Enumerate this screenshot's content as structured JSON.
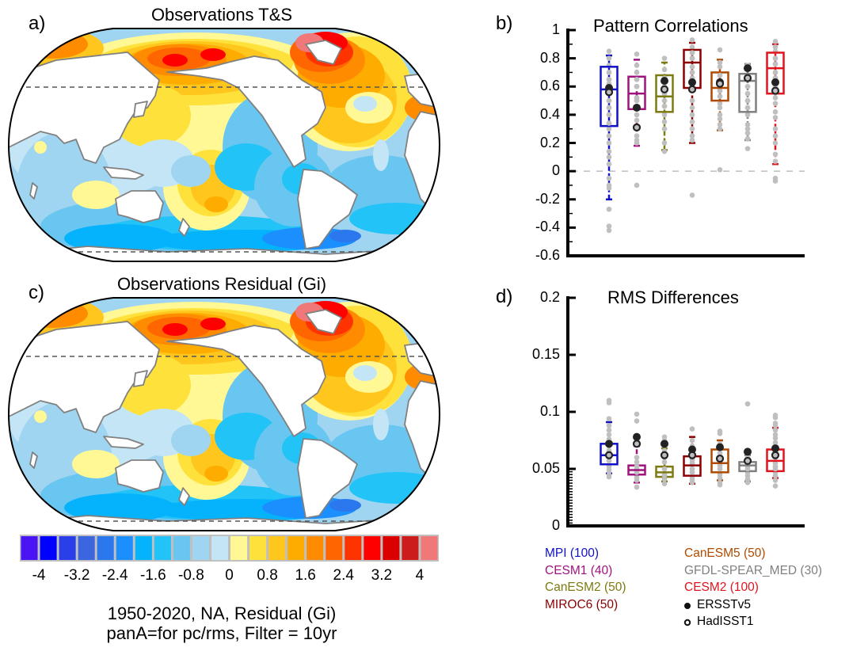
{
  "panels": {
    "a": {
      "label": "a)",
      "title": "Observations T&S"
    },
    "b": {
      "label": "b)",
      "title": "Pattern Correlations"
    },
    "c": {
      "label": "c)",
      "title": "Observations Residual (Gi)"
    },
    "d": {
      "label": "d)",
      "title": "RMS Differences"
    }
  },
  "colorbar": {
    "colors": [
      "#4b14f5",
      "#0000ff",
      "#2a3fea",
      "#3c66df",
      "#2b77ee",
      "#1b8ffd",
      "#05b2fc",
      "#22c3f7",
      "#68c6f1",
      "#9fd5f1",
      "#c4e5f6",
      "#fff894",
      "#ffe13c",
      "#ffc71d",
      "#ffac00",
      "#ff8c00",
      "#ff6600",
      "#ff3300",
      "#ff0000",
      "#db0000",
      "#cc1c1c",
      "#f07878"
    ],
    "labels": [
      "-4",
      "-3.2",
      "-2.4",
      "-1.6",
      "-0.8",
      "0",
      "0.8",
      "1.6",
      "2.4",
      "3.2",
      "4"
    ]
  },
  "caption": {
    "line1": "1950-2020, NA, Residual (Gi)",
    "line2": "panA=for pc/rms, Filter = 10yr"
  },
  "legend": {
    "col1": [
      {
        "text": "MPI (100)",
        "color": "#1010c8"
      },
      {
        "text": "CESM1 (40)",
        "color": "#a0137e"
      },
      {
        "text": "CanESM2 (50)",
        "color": "#7d7a10"
      },
      {
        "text": "MIROC6 (50)",
        "color": "#8b0000"
      }
    ],
    "col2": [
      {
        "text": "CanESM5 (50)",
        "color": "#b04a00"
      },
      {
        "text": "GFDL-SPEAR_MED (30)",
        "color": "#808080"
      },
      {
        "text": "CESM2 (100)",
        "color": "#e0141e"
      },
      {
        "text": "ERSSTv5",
        "color": "#000000",
        "marker": "filled-circle"
      },
      {
        "text": "HadISST1",
        "color": "#000000",
        "marker": "open-circle"
      }
    ]
  },
  "chart_data": [
    {
      "type": "heatmap",
      "title": "Observations T&S",
      "panel": "a",
      "projection": "Robinson (Pacific-centered)",
      "colorbar_range": [
        -4.4,
        4.4
      ],
      "colorbar_step": 0.4,
      "dashed_latitude_lines": [
        "~60N",
        "~45S"
      ],
      "features": [
        {
          "region": "North Pacific (Kuroshio extension)",
          "approx_value": 2.4
        },
        {
          "region": "Subpolar North Atlantic / Labrador Sea",
          "approx_value": 3.4
        },
        {
          "region": "Subtropical North Atlantic",
          "approx_value": 1.2
        },
        {
          "region": "South Pacific (subtropical)",
          "approx_value": 1.2
        },
        {
          "region": "Eastern tropical Pacific",
          "approx_value": -1.2
        },
        {
          "region": "Southern Ocean",
          "approx_value": -1.8
        },
        {
          "region": "Indian Ocean",
          "approx_value": -0.6
        }
      ]
    },
    {
      "type": "box",
      "title": "Pattern Correlations",
      "panel": "b",
      "ylim": [
        -0.6,
        1.0
      ],
      "yticks": [
        -0.6,
        -0.4,
        -0.2,
        0,
        0.2,
        0.4,
        0.6,
        0.8,
        1
      ],
      "ytick_labels": [
        "-0.6",
        "-0.4",
        "-0.2",
        "0",
        "0.2",
        "0.4",
        "0.6",
        "0.8",
        "1"
      ],
      "zero_line": true,
      "series": [
        {
          "name": "MPI",
          "color": "#1010c8",
          "whisker_low": -0.2,
          "q1": 0.32,
          "median": 0.58,
          "q3": 0.74,
          "whisker_high": 0.82,
          "ersst": 0.59,
          "hadisst": 0.56,
          "outliers": [
            -0.27,
            -0.39,
            -0.42
          ],
          "points": [
            0.85,
            0.8,
            0.75,
            0.7,
            0.65,
            0.62,
            0.5,
            0.45,
            0.4,
            0.34,
            0.3,
            0.25,
            0.2,
            0.14,
            0.1,
            0.05,
            -0.05,
            -0.1,
            -0.12
          ]
        },
        {
          "name": "CESM1",
          "color": "#a0137e",
          "whisker_low": 0.18,
          "q1": 0.44,
          "median": 0.55,
          "q3": 0.67,
          "whisker_high": 0.79,
          "ersst": 0.45,
          "hadisst": 0.31,
          "outliers": [
            0.83,
            -0.1
          ],
          "points": [
            0.75,
            0.7,
            0.65,
            0.6,
            0.52,
            0.5,
            0.4,
            0.36,
            0.25,
            0.22,
            0.2
          ]
        },
        {
          "name": "CanESM2",
          "color": "#7d7a10",
          "whisker_low": 0.15,
          "q1": 0.42,
          "median": 0.53,
          "q3": 0.68,
          "whisker_high": 0.77,
          "ersst": 0.64,
          "hadisst": 0.58,
          "outliers": [
            0.14
          ],
          "points": [
            0.8,
            0.72,
            0.66,
            0.6,
            0.55,
            0.5,
            0.46,
            0.4,
            0.35,
            0.3,
            0.2
          ]
        },
        {
          "name": "MIROC6",
          "color": "#8b0000",
          "whisker_low": 0.2,
          "q1": 0.59,
          "median": 0.77,
          "q3": 0.86,
          "whisker_high": 0.91,
          "ersst": 0.63,
          "hadisst": 0.58,
          "outliers": [
            -0.17
          ],
          "points": [
            0.93,
            0.88,
            0.84,
            0.8,
            0.74,
            0.7,
            0.66,
            0.6,
            0.5,
            0.45,
            0.4,
            0.35,
            0.3,
            0.25,
            0.22
          ]
        },
        {
          "name": "CanESM5",
          "color": "#b04a00",
          "whisker_low": 0.29,
          "q1": 0.5,
          "median": 0.59,
          "q3": 0.7,
          "whisker_high": 0.79,
          "ersst": 0.63,
          "hadisst": 0.62,
          "outliers": [
            0.86,
            0.01
          ],
          "points": [
            0.77,
            0.74,
            0.68,
            0.64,
            0.57,
            0.53,
            0.48,
            0.45,
            0.4,
            0.37,
            0.33,
            0.3
          ]
        },
        {
          "name": "GFDL-SPEAR_MED",
          "color": "#808080",
          "whisker_low": 0.22,
          "q1": 0.42,
          "median": 0.64,
          "q3": 0.69,
          "whisker_high": 0.76,
          "ersst": 0.73,
          "hadisst": 0.66,
          "outliers": [
            0.16
          ],
          "points": [
            0.75,
            0.6,
            0.55,
            0.5,
            0.45,
            0.4,
            0.33,
            0.3,
            0.27,
            0.23
          ]
        },
        {
          "name": "CESM2",
          "color": "#e0141e",
          "whisker_low": 0.05,
          "q1": 0.55,
          "median": 0.73,
          "q3": 0.84,
          "whisker_high": 0.9,
          "ersst": 0.63,
          "hadisst": 0.57,
          "outliers": [
            -0.05,
            -0.07
          ],
          "points": [
            0.92,
            0.88,
            0.85,
            0.8,
            0.76,
            0.7,
            0.66,
            0.6,
            0.52,
            0.48,
            0.42,
            0.38,
            0.3,
            0.25,
            0.2,
            0.12,
            0.07
          ]
        }
      ]
    },
    {
      "type": "heatmap",
      "title": "Observations Residual (Gi)",
      "panel": "c",
      "projection": "Robinson (Pacific-centered)",
      "colorbar_range": [
        -4.4,
        4.4
      ],
      "colorbar_step": 0.4,
      "dashed_latitude_lines": [
        "~60N",
        "~45S"
      ],
      "features": [
        {
          "region": "North Pacific (Kuroshio extension)",
          "approx_value": 2.6
        },
        {
          "region": "Subpolar North Atlantic / Labrador Sea",
          "approx_value": 3.4
        },
        {
          "region": "Subtropical North Atlantic",
          "approx_value": 1.2
        },
        {
          "region": "South Pacific (subtropical)",
          "approx_value": 1.4
        },
        {
          "region": "Eastern tropical Pacific",
          "approx_value": -1.4
        },
        {
          "region": "Southern Ocean",
          "approx_value": -2.0
        },
        {
          "region": "Indian Ocean",
          "approx_value": -0.6
        }
      ]
    },
    {
      "type": "box",
      "title": "RMS Differences",
      "panel": "d",
      "ylim": [
        0,
        0.2
      ],
      "yticks": [
        0,
        0.05,
        0.1,
        0.15,
        0.2
      ],
      "ytick_labels": [
        "0",
        "0.05",
        "0.1",
        "0.15",
        "0.2"
      ],
      "series": [
        {
          "name": "MPI",
          "color": "#1010c8",
          "whisker_low": 0.046,
          "q1": 0.054,
          "median": 0.062,
          "q3": 0.072,
          "whisker_high": 0.091,
          "ersst": 0.072,
          "hadisst": 0.062,
          "outliers": [
            0.108,
            0.11,
            0.043
          ],
          "points": [
            0.094,
            0.088,
            0.084,
            0.08,
            0.076,
            0.07,
            0.066,
            0.06,
            0.057,
            0.052,
            0.049,
            0.045
          ]
        },
        {
          "name": "CESM1",
          "color": "#a0137e",
          "whisker_low": 0.038,
          "q1": 0.045,
          "median": 0.049,
          "q3": 0.053,
          "whisker_high": 0.07,
          "ersst": 0.078,
          "hadisst": 0.072,
          "outliers": [
            0.098,
            0.092,
            0.034
          ],
          "points": [
            0.06,
            0.056,
            0.052,
            0.05,
            0.047,
            0.044,
            0.042,
            0.04
          ]
        },
        {
          "name": "CanESM2",
          "color": "#7d7a10",
          "whisker_low": 0.039,
          "q1": 0.043,
          "median": 0.047,
          "q3": 0.052,
          "whisker_high": 0.068,
          "ersst": 0.072,
          "hadisst": 0.062,
          "outliers": [
            0.037
          ],
          "points": [
            0.078,
            0.075,
            0.066,
            0.06,
            0.056,
            0.05,
            0.046,
            0.044,
            0.041
          ]
        },
        {
          "name": "MIROC6",
          "color": "#8b0000",
          "whisker_low": 0.037,
          "q1": 0.044,
          "median": 0.053,
          "q3": 0.061,
          "whisker_high": 0.078,
          "ersst": 0.067,
          "hadisst": 0.062,
          "outliers": [
            0.085
          ],
          "points": [
            0.075,
            0.07,
            0.066,
            0.058,
            0.055,
            0.05,
            0.047,
            0.042,
            0.04,
            0.038
          ]
        },
        {
          "name": "CanESM5",
          "color": "#b04a00",
          "whisker_low": 0.04,
          "q1": 0.047,
          "median": 0.055,
          "q3": 0.067,
          "whisker_high": 0.075,
          "ersst": 0.069,
          "hadisst": 0.059,
          "outliers": [
            0.083,
            0.081,
            0.036
          ],
          "points": [
            0.072,
            0.064,
            0.061,
            0.057,
            0.053,
            0.05,
            0.045,
            0.042,
            0.038
          ]
        },
        {
          "name": "GFDL-SPEAR_MED",
          "color": "#808080",
          "whisker_low": 0.039,
          "q1": 0.048,
          "median": 0.053,
          "q3": 0.056,
          "whisker_high": 0.062,
          "ersst": 0.065,
          "hadisst": 0.057,
          "outliers": [
            0.107
          ],
          "points": [
            0.06,
            0.055,
            0.052,
            0.05,
            0.047,
            0.044,
            0.041,
            0.038
          ]
        },
        {
          "name": "CESM2",
          "color": "#e0141e",
          "whisker_low": 0.042,
          "q1": 0.048,
          "median": 0.057,
          "q3": 0.067,
          "whisker_high": 0.086,
          "ersst": 0.068,
          "hadisst": 0.062,
          "outliers": [
            0.097,
            0.095,
            0.035
          ],
          "points": [
            0.09,
            0.088,
            0.084,
            0.08,
            0.077,
            0.073,
            0.07,
            0.065,
            0.06,
            0.055,
            0.052,
            0.05,
            0.047,
            0.044,
            0.04
          ]
        }
      ]
    }
  ]
}
